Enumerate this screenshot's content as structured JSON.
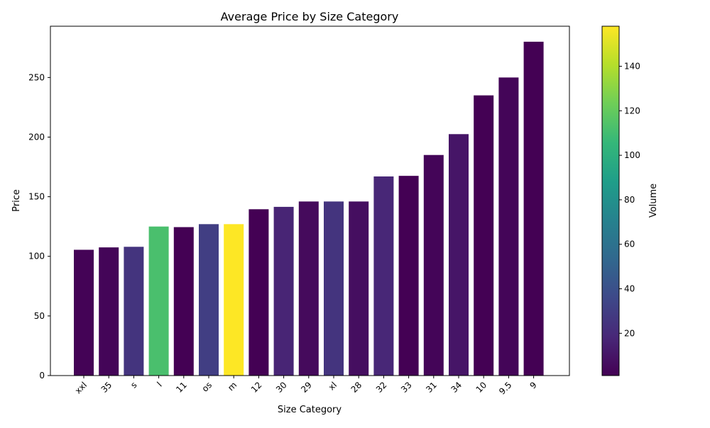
{
  "chart_data": {
    "type": "bar",
    "title": "Average Price by Size Category",
    "xlabel": "Size Category",
    "ylabel": "Price",
    "ylim": [
      0,
      293
    ],
    "yticks": [
      0,
      50,
      100,
      150,
      200,
      250
    ],
    "grid": false,
    "categories": [
      "xxl",
      "35",
      "s",
      "l",
      "11",
      "os",
      "m",
      "12",
      "30",
      "29",
      "xl",
      "28",
      "32",
      "33",
      "31",
      "34",
      "10",
      "9.5",
      "9"
    ],
    "values": [
      105.5,
      107.5,
      108,
      125,
      124.5,
      127,
      127,
      139.5,
      141.5,
      146,
      146,
      146,
      167,
      167.5,
      185,
      202.5,
      235,
      250,
      280
    ],
    "volume": [
      2,
      3,
      25,
      112,
      1,
      30,
      158,
      1,
      17,
      5,
      25,
      7,
      18,
      1,
      3,
      10,
      1,
      3,
      1
    ],
    "colorbar": {
      "label": "Volume",
      "min": 1,
      "max": 158,
      "ticks": [
        20,
        40,
        60,
        80,
        100,
        120,
        140
      ],
      "colormap": "viridis",
      "stops": [
        "#440154",
        "#482878",
        "#3e4989",
        "#31688e",
        "#26828e",
        "#1f9e89",
        "#35b779",
        "#6ece58",
        "#b5de2b",
        "#fde725"
      ]
    }
  }
}
